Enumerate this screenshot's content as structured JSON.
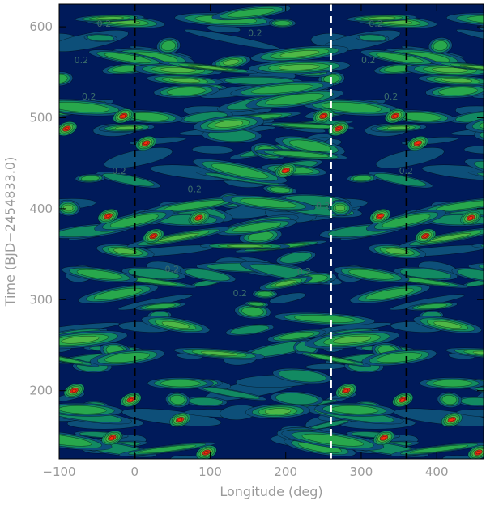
{
  "chart_data": {
    "type": "heatmap",
    "title": "",
    "xlabel": "Longitude (deg)",
    "ylabel": "Time (BJD−2454833.0)",
    "xlim": [
      -100,
      462
    ],
    "ylim": [
      125,
      625
    ],
    "x_ticks": [
      -100,
      0,
      100,
      200,
      300,
      400
    ],
    "x_tick_labels": [
      "−100",
      "0",
      "100",
      "200",
      "300",
      "400"
    ],
    "y_ticks": [
      200,
      300,
      400,
      500,
      600
    ],
    "y_tick_labels": [
      "200",
      "300",
      "400",
      "500",
      "600"
    ],
    "contour_level_label": "0.2",
    "vertical_lines": [
      {
        "x": 0,
        "style": "dashed",
        "color": "#000000"
      },
      {
        "x": 260,
        "style": "dashed",
        "color": "#ffffff"
      },
      {
        "x": 360,
        "style": "dashed",
        "color": "#000000"
      }
    ],
    "colors": {
      "level0": "#001a5a",
      "level1": "#0d4f79",
      "level2": "#128a62",
      "level3": "#28a84c",
      "level4": "#4eb846",
      "level5": "#c83018",
      "level6": "#ff2a0a"
    },
    "grid": false
  }
}
